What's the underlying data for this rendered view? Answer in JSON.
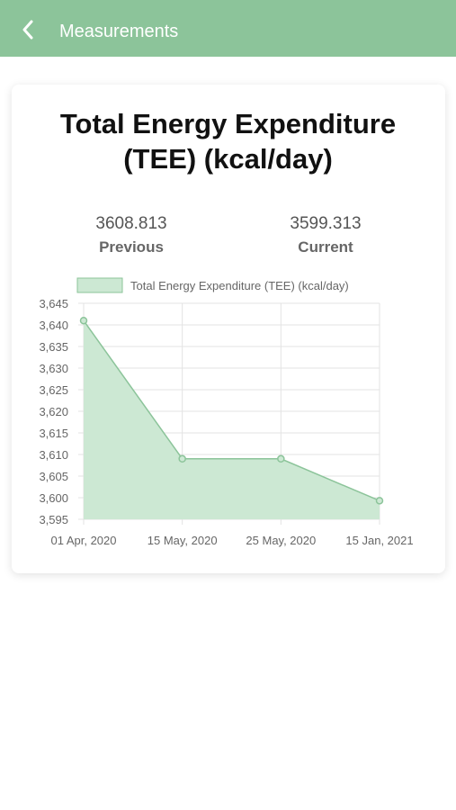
{
  "header": {
    "title": "Measurements"
  },
  "card": {
    "title_line1": "Total Energy Expenditure",
    "title_line2": "(TEE) (kcal/day)",
    "previous": {
      "value": "3608.813",
      "label": "Previous"
    },
    "current": {
      "value": "3599.313",
      "label": "Current"
    }
  },
  "colors": {
    "header_bg": "#8cc49a",
    "series_fill": "#cce8d3",
    "series_line": "#8cc49a",
    "grid": "#e3e3e3"
  },
  "chart_data": {
    "type": "area",
    "x": [
      "01 Apr, 2020",
      "15 May, 2020",
      "25 May, 2020",
      "15 Jan, 2021"
    ],
    "series": [
      {
        "name": "Total Energy Expenditure (TEE) (kcal/day)",
        "values": [
          3641,
          3609,
          3609,
          3599.3
        ]
      }
    ],
    "yticks": [
      "3,595",
      "3,600",
      "3,605",
      "3,610",
      "3,615",
      "3,620",
      "3,625",
      "3,630",
      "3,635",
      "3,640",
      "3,645"
    ],
    "ylim": [
      3595,
      3645
    ],
    "grid": true,
    "legend": "top"
  }
}
